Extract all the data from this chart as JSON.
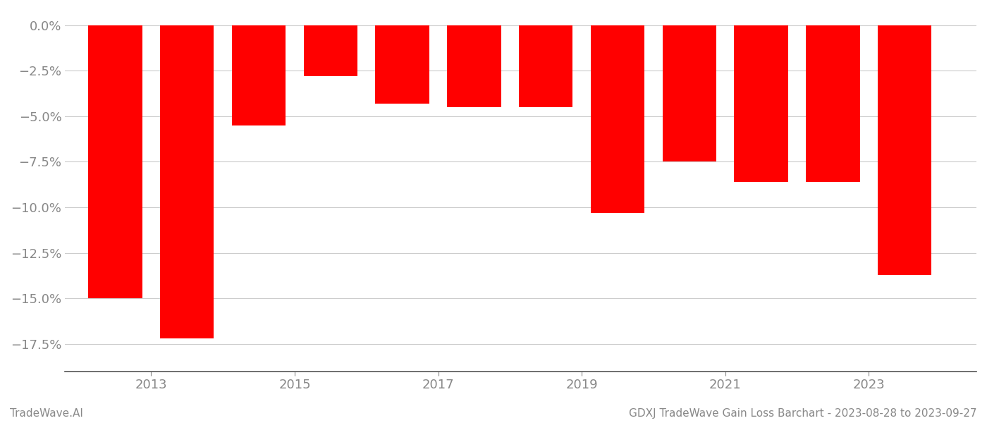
{
  "years": [
    2012.5,
    2013.5,
    2014.5,
    2015.5,
    2016.5,
    2017.5,
    2018.5,
    2019.5,
    2020.5,
    2021.5,
    2022.5,
    2023.5
  ],
  "values": [
    -15.0,
    -17.2,
    -5.5,
    -2.8,
    -4.3,
    -4.5,
    -4.5,
    -10.3,
    -7.5,
    -8.6,
    -8.6,
    -13.7
  ],
  "bar_color": "#ff0000",
  "background_color": "#ffffff",
  "grid_color": "#cccccc",
  "tick_label_color": "#888888",
  "ylim": [
    -19.0,
    0.8
  ],
  "yticks": [
    0.0,
    -2.5,
    -5.0,
    -7.5,
    -10.0,
    -12.5,
    -15.0,
    -17.5
  ],
  "xticks": [
    2013,
    2015,
    2017,
    2019,
    2021,
    2023
  ],
  "footer_left": "TradeWave.AI",
  "footer_right": "GDXJ TradeWave Gain Loss Barchart - 2023-08-28 to 2023-09-27",
  "bar_width": 0.75,
  "xlim": [
    2011.8,
    2024.5
  ]
}
